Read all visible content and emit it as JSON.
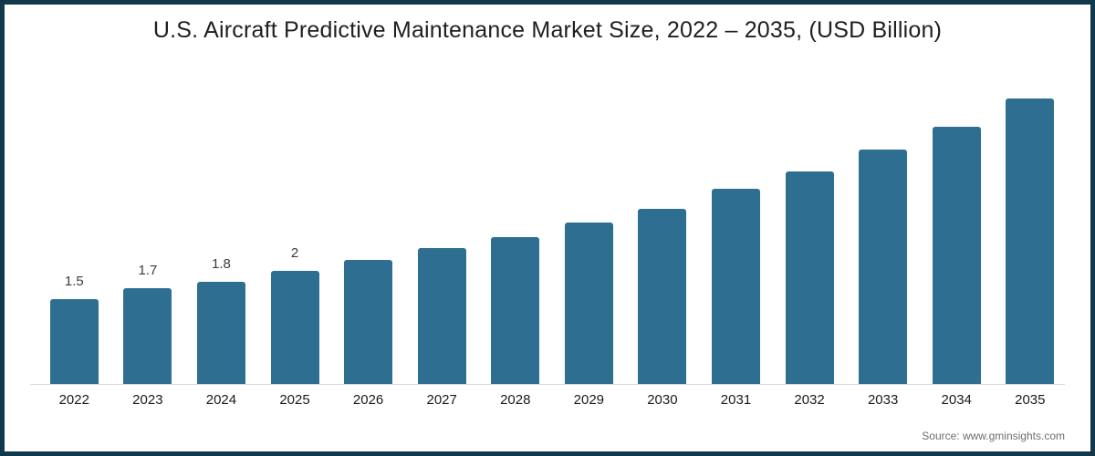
{
  "frame": {
    "border_color": "#11384C",
    "background_color": "#ffffff"
  },
  "chart_data": {
    "type": "bar",
    "title": "U.S. Aircraft Predictive Maintenance Market Size, 2022 – 2035, (USD Billion)",
    "categories": [
      "2022",
      "2023",
      "2024",
      "2025",
      "2026",
      "2027",
      "2028",
      "2029",
      "2030",
      "2031",
      "2032",
      "2033",
      "2034",
      "2035"
    ],
    "values": [
      1.5,
      1.7,
      1.8,
      2.0,
      2.2,
      2.4,
      2.6,
      2.85,
      3.1,
      3.45,
      3.75,
      4.15,
      4.55,
      5.05
    ],
    "data_labels": [
      "1.5",
      "1.7",
      "1.8",
      "2",
      "",
      "",
      "",
      "",
      "",
      "",
      "",
      "",
      "",
      ""
    ],
    "xlabel": "",
    "ylabel": "",
    "ylim": [
      0,
      5.6
    ],
    "grid": false,
    "legend": "none",
    "bar_color": "#2E6F91",
    "axis_line_color": "#D9D9D9",
    "title_color": "#1f1f1f",
    "value_label_color": "#3d3d3d",
    "category_label_color": "#1a1a1a"
  },
  "source": {
    "text": "Source: www.gminsights.com",
    "color": "#6E6E6E"
  }
}
